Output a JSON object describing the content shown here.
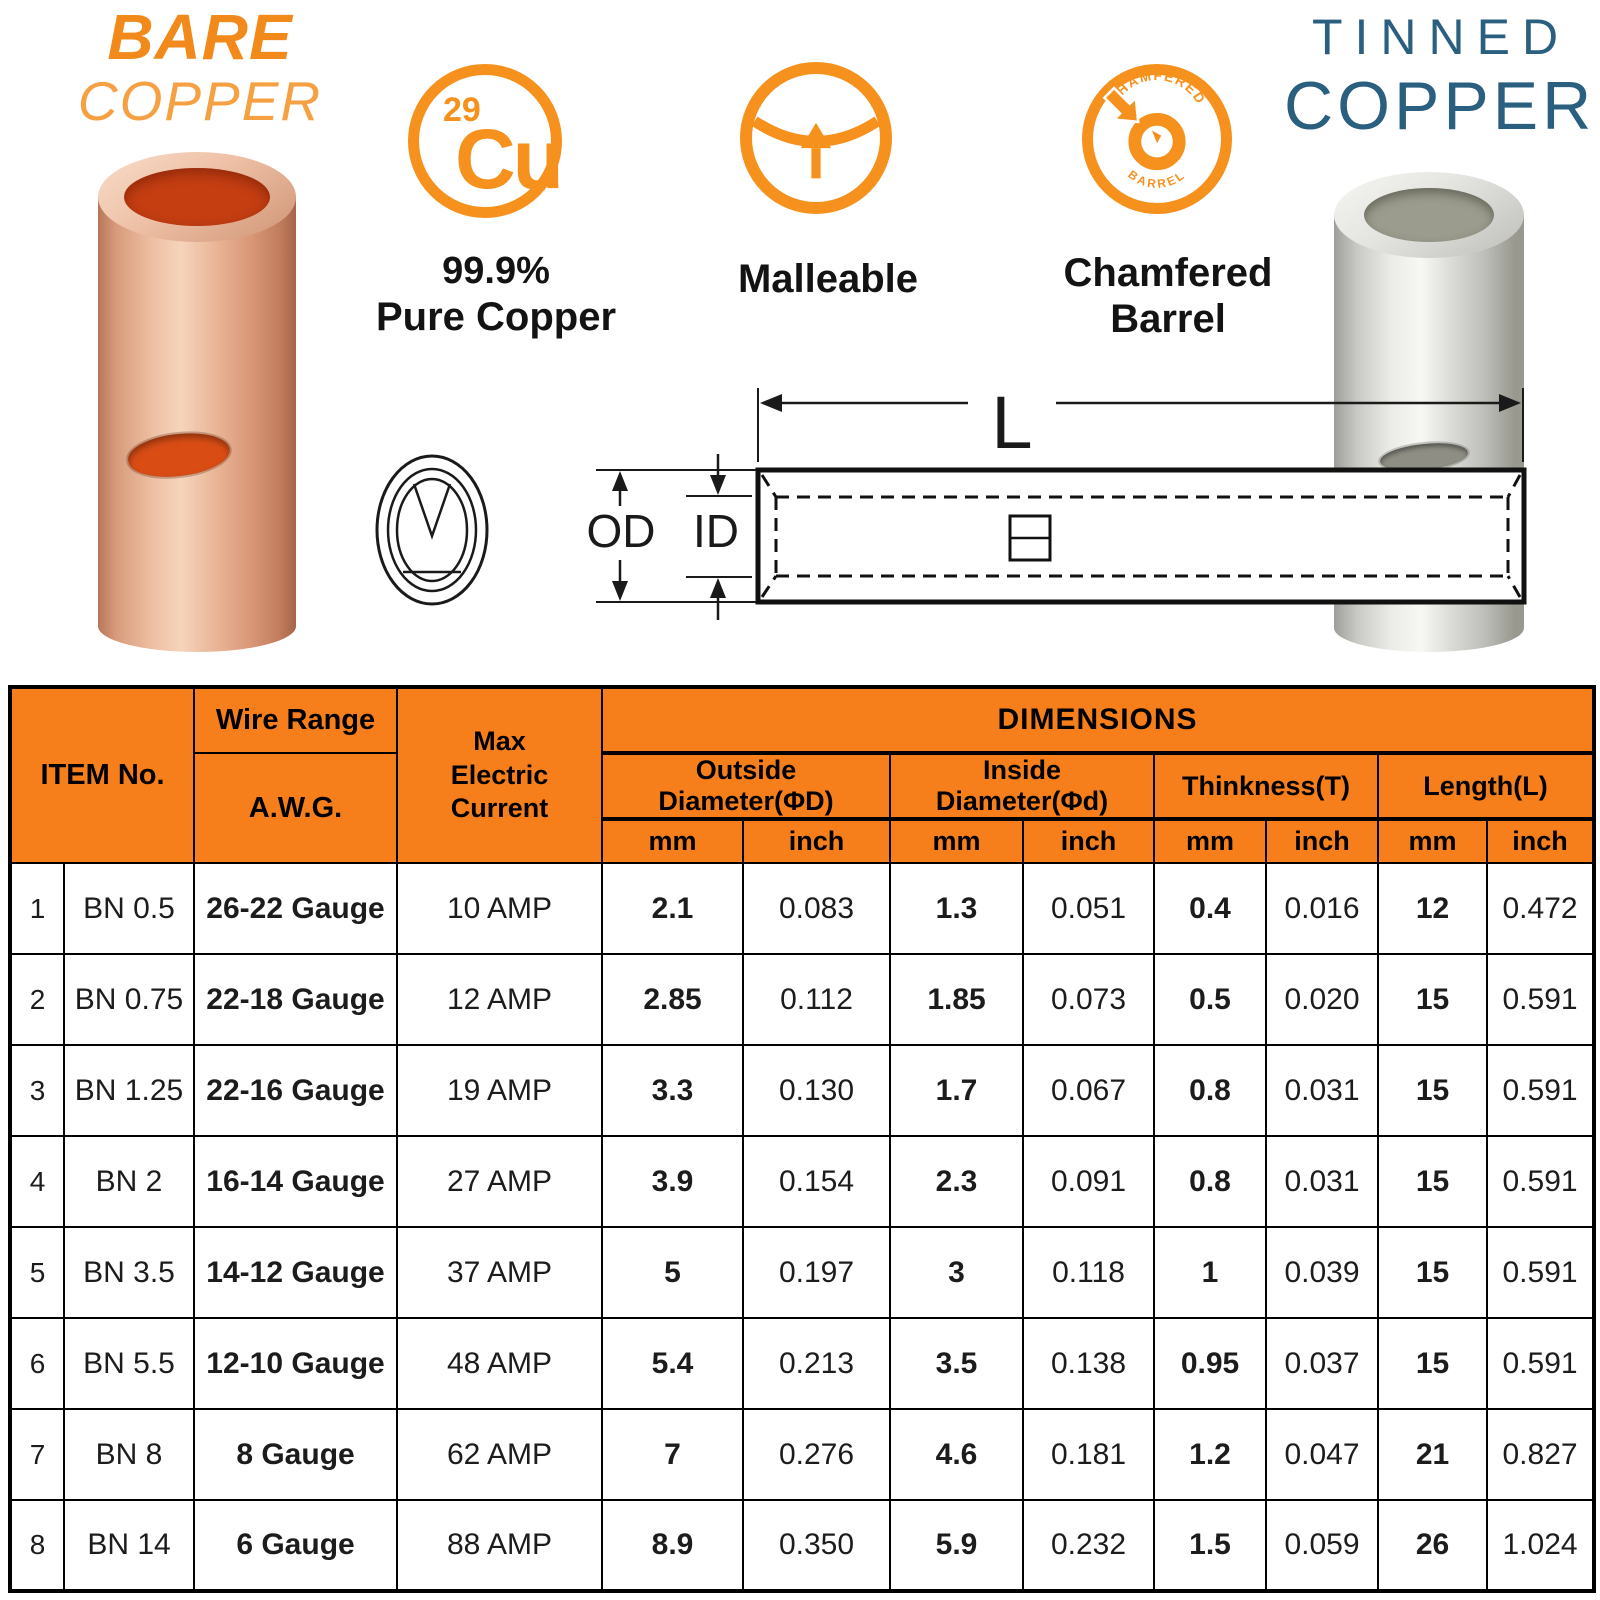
{
  "title_left": {
    "line1": "BARE",
    "line2": "COPPER"
  },
  "title_right": {
    "line1": "TINNED",
    "line2": "COPPER"
  },
  "features": {
    "cu": {
      "atomic_number": "29",
      "symbol": "Cu",
      "caption1": "99.9%",
      "caption2": "Pure Copper"
    },
    "malleable": {
      "caption": "Malleable"
    },
    "chamfered": {
      "ring_text_top": "CHAMFERED",
      "ring_text_bottom": "BARREL",
      "caption1": "Chamfered",
      "caption2": "Barrel"
    }
  },
  "colors": {
    "accent_orange": "#F6911D",
    "header_orange": "#F77F1B",
    "bare_orange": "#F18A1A",
    "copper_light_orange": "#F5A143",
    "tinned_blue": "#2A5F7F",
    "copper_bore_red": "#C43E12"
  },
  "diagram": {
    "od_label": "OD",
    "id_label": "ID",
    "length_label": "L"
  },
  "table": {
    "item_no": "ITEM No.",
    "wire_range": "Wire Range",
    "awg": "A.W.G.",
    "max1": "Max",
    "max2": "Electric Current",
    "dimensions": "DIMENSIONS",
    "cols": {
      "od": "Outside Diameter(ΦD)",
      "id": "Inside Diameter(Φd)",
      "t": "Thinkness(T)",
      "l": "Length(L)",
      "mm": "mm",
      "inch": "inch"
    },
    "rows": [
      {
        "num": "1",
        "item": "BN 0.5",
        "wire": "26-22 Gauge",
        "amp": "10 AMP",
        "od_mm": "2.1",
        "od_in": "0.083",
        "id_mm": "1.3",
        "id_in": "0.051",
        "t_mm": "0.4",
        "t_in": "0.016",
        "l_mm": "12",
        "l_in": "0.472"
      },
      {
        "num": "2",
        "item": "BN 0.75",
        "wire": "22-18 Gauge",
        "amp": "12 AMP",
        "od_mm": "2.85",
        "od_in": "0.112",
        "id_mm": "1.85",
        "id_in": "0.073",
        "t_mm": "0.5",
        "t_in": "0.020",
        "l_mm": "15",
        "l_in": "0.591"
      },
      {
        "num": "3",
        "item": "BN 1.25",
        "wire": "22-16 Gauge",
        "amp": "19 AMP",
        "od_mm": "3.3",
        "od_in": "0.130",
        "id_mm": "1.7",
        "id_in": "0.067",
        "t_mm": "0.8",
        "t_in": "0.031",
        "l_mm": "15",
        "l_in": "0.591"
      },
      {
        "num": "4",
        "item": "BN 2",
        "wire": "16-14 Gauge",
        "amp": "27 AMP",
        "od_mm": "3.9",
        "od_in": "0.154",
        "id_mm": "2.3",
        "id_in": "0.091",
        "t_mm": "0.8",
        "t_in": "0.031",
        "l_mm": "15",
        "l_in": "0.591"
      },
      {
        "num": "5",
        "item": "BN 3.5",
        "wire": "14-12 Gauge",
        "amp": "37 AMP",
        "od_mm": "5",
        "od_in": "0.197",
        "id_mm": "3",
        "id_in": "0.118",
        "t_mm": "1",
        "t_in": "0.039",
        "l_mm": "15",
        "l_in": "0.591"
      },
      {
        "num": "6",
        "item": "BN 5.5",
        "wire": "12-10 Gauge",
        "amp": "48 AMP",
        "od_mm": "5.4",
        "od_in": "0.213",
        "id_mm": "3.5",
        "id_in": "0.138",
        "t_mm": "0.95",
        "t_in": "0.037",
        "l_mm": "15",
        "l_in": "0.591"
      },
      {
        "num": "7",
        "item": "BN 8",
        "wire": "8 Gauge",
        "amp": "62 AMP",
        "od_mm": "7",
        "od_in": "0.276",
        "id_mm": "4.6",
        "id_in": "0.181",
        "t_mm": "1.2",
        "t_in": "0.047",
        "l_mm": "21",
        "l_in": "0.827"
      },
      {
        "num": "8",
        "item": "BN 14",
        "wire": "6 Gauge",
        "amp": "88 AMP",
        "od_mm": "8.9",
        "od_in": "0.350",
        "id_mm": "5.9",
        "id_in": "0.232",
        "t_mm": "1.5",
        "t_in": "0.059",
        "l_mm": "26",
        "l_in": "1.024"
      }
    ]
  }
}
